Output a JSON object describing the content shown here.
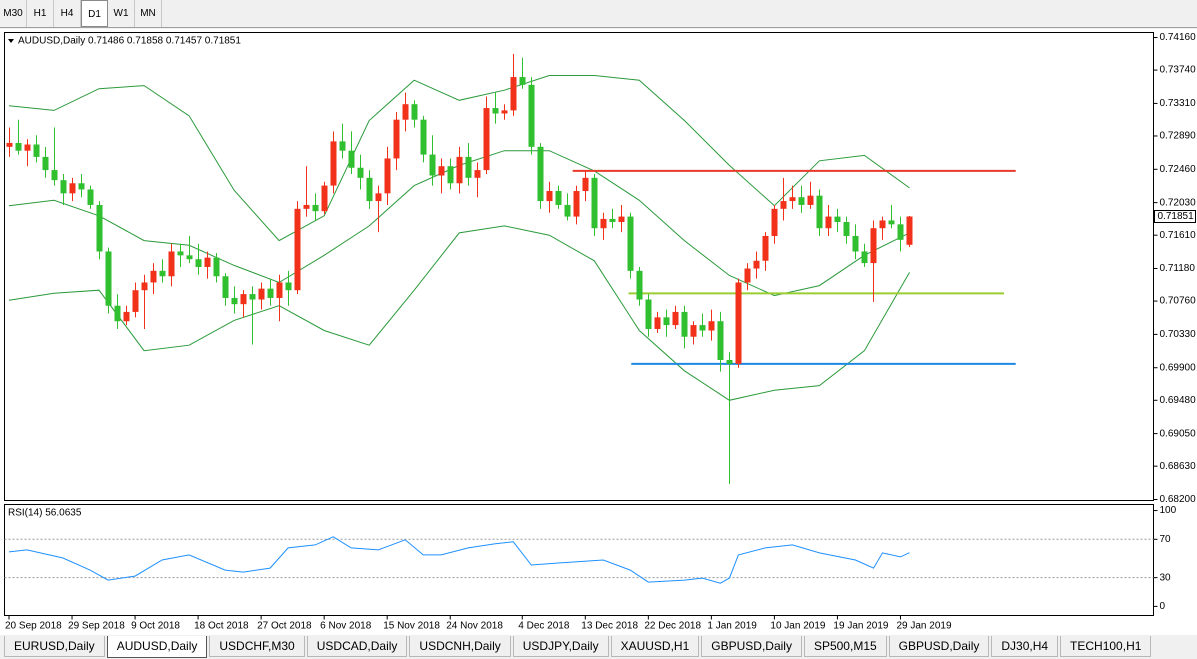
{
  "toolbar": [
    "M30",
    "H1",
    "H4",
    "D1",
    "W1",
    "MN"
  ],
  "tabs": [
    "EURUSD,Daily",
    "AUDUSD,Daily",
    "USDCHF,M30",
    "USDCAD,Daily",
    "USDCNH,Daily",
    "USDJPY,Daily",
    "XAUUSD,H1",
    "GBPUSD,Daily",
    "SP500,M15",
    "GBPUSD,Daily",
    "DJ30,H4",
    "TECH100,H1"
  ],
  "chart_data": [
    {
      "type": "candlestick",
      "title": "AUDUSD,Daily  0.71486 0.71858 0.71457 0.71851",
      "open": [
        0.7275,
        0.728,
        0.727,
        0.7278,
        0.7262,
        0.7245,
        0.7232,
        0.7215,
        0.7228,
        0.722,
        0.72,
        0.714,
        0.707,
        0.705,
        0.7062,
        0.709,
        0.71,
        0.7115,
        0.7108,
        0.714,
        0.7135,
        0.713,
        0.712,
        0.7132,
        0.7108,
        0.708,
        0.7072,
        0.7085,
        0.7078,
        0.7092,
        0.708,
        0.71,
        0.709,
        0.7195,
        0.72,
        0.7192,
        0.7225,
        0.7282,
        0.727,
        0.7248,
        0.7235,
        0.7205,
        0.7215,
        0.726,
        0.731,
        0.733,
        0.731,
        0.7265,
        0.7238,
        0.725,
        0.7228,
        0.7262,
        0.7235,
        0.7245,
        0.7325,
        0.7318,
        0.7322,
        0.7365,
        0.7355,
        0.7275,
        0.7205,
        0.7218,
        0.72,
        0.7185,
        0.7218,
        0.7235,
        0.717,
        0.7182,
        0.7178,
        0.7185,
        0.7115,
        0.7078,
        0.704,
        0.7055,
        0.7045,
        0.7062,
        0.703,
        0.7045,
        0.7038,
        0.705,
        0.7,
        0.6995,
        0.71,
        0.7118,
        0.7128,
        0.716,
        0.7195,
        0.7205,
        0.721,
        0.72,
        0.7212,
        0.717,
        0.7185,
        0.7178,
        0.716,
        0.714,
        0.7125,
        0.717,
        0.718,
        0.7175,
        0.71486
      ],
      "high": [
        0.73,
        0.731,
        0.7285,
        0.729,
        0.7275,
        0.73,
        0.724,
        0.7235,
        0.724,
        0.7225,
        0.7205,
        0.7145,
        0.7085,
        0.707,
        0.71,
        0.711,
        0.7125,
        0.713,
        0.715,
        0.715,
        0.716,
        0.715,
        0.714,
        0.7138,
        0.7112,
        0.7095,
        0.709,
        0.7095,
        0.71,
        0.7105,
        0.711,
        0.7115,
        0.7205,
        0.725,
        0.7215,
        0.723,
        0.7295,
        0.7305,
        0.7295,
        0.7265,
        0.7245,
        0.7225,
        0.7275,
        0.732,
        0.7345,
        0.7335,
        0.7315,
        0.729,
        0.726,
        0.726,
        0.7275,
        0.728,
        0.7255,
        0.734,
        0.7345,
        0.733,
        0.7395,
        0.739,
        0.7365,
        0.728,
        0.723,
        0.7225,
        0.7215,
        0.7225,
        0.7245,
        0.724,
        0.719,
        0.7195,
        0.72,
        0.719,
        0.712,
        0.7085,
        0.7062,
        0.7065,
        0.707,
        0.707,
        0.705,
        0.706,
        0.7065,
        0.7062,
        0.701,
        0.7105,
        0.7125,
        0.714,
        0.7165,
        0.72,
        0.7235,
        0.7225,
        0.7225,
        0.723,
        0.722,
        0.72,
        0.7195,
        0.7185,
        0.7175,
        0.715,
        0.718,
        0.7185,
        0.72,
        0.7185,
        0.71858
      ],
      "low": [
        0.7262,
        0.7265,
        0.725,
        0.7255,
        0.7235,
        0.7225,
        0.72,
        0.7205,
        0.721,
        0.7195,
        0.713,
        0.706,
        0.704,
        0.7045,
        0.7055,
        0.704,
        0.7085,
        0.71,
        0.7095,
        0.712,
        0.7125,
        0.711,
        0.7105,
        0.71,
        0.707,
        0.706,
        0.7055,
        0.702,
        0.7065,
        0.707,
        0.705,
        0.707,
        0.7085,
        0.7185,
        0.718,
        0.7188,
        0.7215,
        0.726,
        0.724,
        0.722,
        0.7195,
        0.7165,
        0.72,
        0.7245,
        0.7295,
        0.73,
        0.7255,
        0.7225,
        0.7215,
        0.722,
        0.7215,
        0.7225,
        0.721,
        0.724,
        0.7305,
        0.731,
        0.7315,
        0.735,
        0.7265,
        0.7195,
        0.719,
        0.7195,
        0.718,
        0.7175,
        0.7205,
        0.716,
        0.7155,
        0.717,
        0.7165,
        0.7105,
        0.707,
        0.703,
        0.7035,
        0.703,
        0.704,
        0.7015,
        0.702,
        0.703,
        0.7025,
        0.6985,
        0.684,
        0.699,
        0.709,
        0.7105,
        0.7115,
        0.715,
        0.718,
        0.7195,
        0.719,
        0.7195,
        0.716,
        0.716,
        0.7165,
        0.715,
        0.713,
        0.712,
        0.7075,
        0.7155,
        0.717,
        0.714,
        0.71457
      ],
      "close": [
        0.728,
        0.727,
        0.7278,
        0.7262,
        0.7245,
        0.7232,
        0.7215,
        0.7228,
        0.722,
        0.72,
        0.714,
        0.707,
        0.705,
        0.7062,
        0.709,
        0.71,
        0.7115,
        0.7108,
        0.714,
        0.7135,
        0.713,
        0.712,
        0.7132,
        0.7108,
        0.708,
        0.7072,
        0.7085,
        0.7078,
        0.7092,
        0.708,
        0.71,
        0.709,
        0.7195,
        0.72,
        0.7192,
        0.7225,
        0.7282,
        0.727,
        0.7248,
        0.7235,
        0.7205,
        0.7215,
        0.726,
        0.731,
        0.733,
        0.731,
        0.7265,
        0.7238,
        0.725,
        0.7228,
        0.7262,
        0.7235,
        0.7245,
        0.7325,
        0.7318,
        0.7322,
        0.7365,
        0.7355,
        0.7275,
        0.7205,
        0.7218,
        0.72,
        0.7185,
        0.7218,
        0.7235,
        0.717,
        0.7182,
        0.7178,
        0.7185,
        0.7115,
        0.7078,
        0.704,
        0.7055,
        0.7045,
        0.7062,
        0.703,
        0.7045,
        0.7038,
        0.705,
        0.7,
        0.6995,
        0.71,
        0.7118,
        0.7128,
        0.716,
        0.7195,
        0.7205,
        0.721,
        0.72,
        0.7212,
        0.717,
        0.7185,
        0.7178,
        0.716,
        0.714,
        0.7125,
        0.717,
        0.718,
        0.7175,
        0.7155,
        0.71851
      ],
      "up_color": "#f2311b",
      "down_color": "#2fbf2f",
      "overlays": [
        {
          "color": "#2a9a3a",
          "x": [
            0,
            5,
            10,
            15,
            20,
            25,
            30,
            35,
            40,
            45,
            50,
            55,
            60,
            65,
            70,
            75,
            80,
            85,
            90,
            95,
            100
          ],
          "values": [
            0.7328,
            0.7322,
            0.735,
            0.7354,
            0.7315,
            0.7219,
            0.7154,
            0.7186,
            0.7309,
            0.7361,
            0.7335,
            0.7348,
            0.7367,
            0.7367,
            0.7361,
            0.7309,
            0.7251,
            0.7199,
            0.7257,
            0.7264,
            0.7222
          ]
        },
        {
          "color": "#2a9a3a",
          "x": [
            0,
            5,
            10,
            15,
            20,
            25,
            30,
            35,
            40,
            45,
            50,
            55,
            60,
            65,
            70,
            75,
            80,
            85,
            90,
            95,
            100
          ],
          "values": [
            0.7199,
            0.7206,
            0.7186,
            0.7154,
            0.7148,
            0.7122,
            0.71,
            0.7135,
            0.7173,
            0.7225,
            0.7251,
            0.727,
            0.727,
            0.7244,
            0.7206,
            0.7154,
            0.7109,
            0.7083,
            0.7096,
            0.7135,
            0.7164
          ]
        },
        {
          "color": "#2a9a3a",
          "x": [
            0,
            5,
            10,
            15,
            20,
            25,
            30,
            35,
            40,
            45,
            50,
            55,
            60,
            65,
            70,
            75,
            80,
            85,
            90,
            95,
            100
          ],
          "values": [
            0.7077,
            0.7086,
            0.709,
            0.7012,
            0.7019,
            0.7051,
            0.707,
            0.7038,
            0.7019,
            0.709,
            0.7164,
            0.7173,
            0.7161,
            0.7128,
            0.7038,
            0.6986,
            0.6948,
            0.6961,
            0.6967,
            0.7012,
            0.7113
          ]
        }
      ],
      "levels": [
        {
          "value": 0.7244,
          "x": [
            62.6,
            111.8
          ],
          "color": "#e8392b"
        },
        {
          "value": 0.7086,
          "x": [
            68.8,
            110.5
          ],
          "color": "#9acd32"
        },
        {
          "value": 0.6995,
          "x": [
            69.1,
            111.8
          ],
          "color": "#1e88e5"
        }
      ],
      "last_price": 0.71851,
      "xlim": [
        -0.5,
        127.1
      ],
      "ylim": [
        0.68187,
        0.74225
      ],
      "yticks": [
        {
          "value": 0.7416,
          "label": "0.74160"
        },
        {
          "value": 0.7374,
          "label": "0.73740"
        },
        {
          "value": 0.7331,
          "label": "0.73310"
        },
        {
          "value": 0.7289,
          "label": "0.72890"
        },
        {
          "value": 0.7246,
          "label": "0.72460"
        },
        {
          "value": 0.7203,
          "label": "0.72030"
        },
        {
          "value": 0.7161,
          "label": "0.71610"
        },
        {
          "value": 0.7118,
          "label": "0.71180"
        },
        {
          "value": 0.7076,
          "label": "0.70760"
        },
        {
          "value": 0.7033,
          "label": "0.70330"
        },
        {
          "value": 0.699,
          "label": "0.69900"
        },
        {
          "value": 0.6948,
          "label": "0.69480"
        },
        {
          "value": 0.6905,
          "label": "0.69050"
        },
        {
          "value": 0.6863,
          "label": "0.68630"
        },
        {
          "value": 0.682,
          "label": "0.68200"
        }
      ]
    },
    {
      "type": "line",
      "title": "RSI(14) 56.0635",
      "color": "#1e90ff",
      "x": [
        0,
        2,
        6,
        9,
        11,
        14,
        17,
        20,
        24,
        26,
        29,
        31,
        34,
        36,
        38,
        41,
        44,
        46,
        48,
        51,
        54,
        56,
        58,
        61,
        66,
        69,
        71,
        75,
        77,
        79,
        80,
        81,
        84,
        87,
        90,
        94,
        96,
        97,
        99,
        100
      ],
      "values": [
        56.8,
        58.9,
        50.5,
        37.9,
        27.4,
        31.6,
        48.4,
        53.7,
        37.9,
        35.8,
        40,
        61,
        64.2,
        72.6,
        61,
        58.9,
        69.5,
        53.7,
        53.7,
        61,
        65.3,
        67.4,
        43.2,
        45.3,
        48.4,
        37.9,
        25.3,
        27.4,
        29.5,
        24.2,
        29.5,
        53.7,
        61,
        64.2,
        55.8,
        48.4,
        40,
        55.8,
        51.6,
        56.0635
      ],
      "levels": [
        70,
        30
      ],
      "xlim": [
        -0.5,
        127.1
      ],
      "ylim": [
        -9.5,
        106.3
      ],
      "yticks": [
        100,
        70,
        30,
        0
      ],
      "xticks": [
        {
          "value": 0,
          "label": "20 Sep 2018"
        },
        {
          "value": 7,
          "label": "29 Sep 2018"
        },
        {
          "value": 14,
          "label": "9 Oct 2018"
        },
        {
          "value": 21,
          "label": "18 Oct 2018"
        },
        {
          "value": 28,
          "label": "27 Oct 2018"
        },
        {
          "value": 35,
          "label": "6 Nov 2018"
        },
        {
          "value": 42,
          "label": "15 Nov 2018"
        },
        {
          "value": 49,
          "label": "24 Nov 2018"
        },
        {
          "value": 57,
          "label": "4 Dec 2018"
        },
        {
          "value": 64,
          "label": "13 Dec 2018"
        },
        {
          "value": 71,
          "label": "22 Dec 2018"
        },
        {
          "value": 78,
          "label": "1 Jan 2019"
        },
        {
          "value": 85,
          "label": "10 Jan 2019"
        },
        {
          "value": 92,
          "label": "19 Jan 2019"
        },
        {
          "value": 99,
          "label": "29 Jan 2019"
        }
      ]
    }
  ]
}
